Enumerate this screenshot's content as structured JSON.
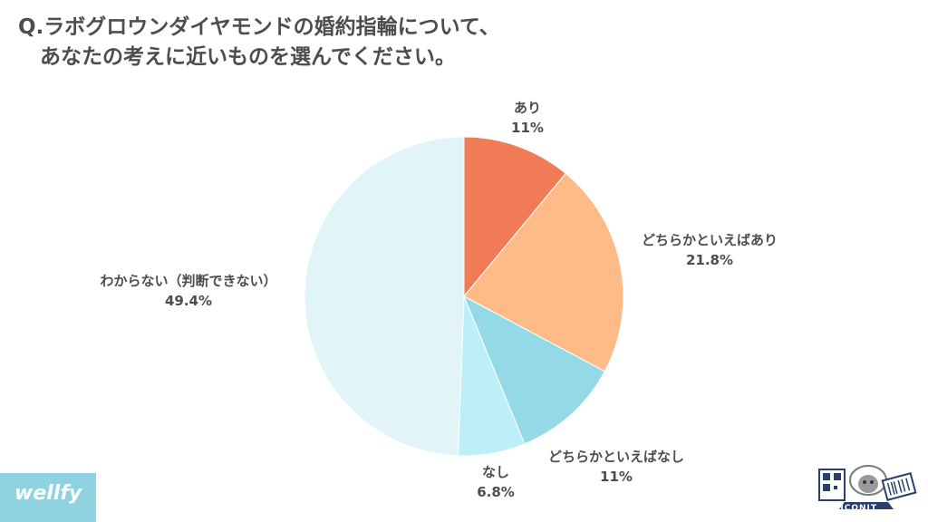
{
  "title": {
    "line1": "Q.ラボグロウンダイヤモンドの婚約指輪について、",
    "line2": "あなたの考えに近いものを選んでください。"
  },
  "chart_data": {
    "type": "pie",
    "start": "top, clockwise",
    "slices": [
      {
        "label": "あり",
        "value": 11,
        "value_label": "11%",
        "color": "#f07b56"
      },
      {
        "label": "どちらかといえばあり",
        "value": 21.8,
        "value_label": "21.8%",
        "color": "#ffbb87"
      },
      {
        "label": "どちらかといえばなし",
        "value": 11,
        "value_label": "11%",
        "color": "#93d9e6"
      },
      {
        "label": "なし",
        "value": 6.8,
        "value_label": "6.8%",
        "color": "#bdeff9"
      },
      {
        "label": "わからない（判断できない）",
        "value": 49.4,
        "value_label": "49.4%",
        "color": "#e1f4f8"
      }
    ]
  },
  "brand": {
    "name": "wellfy"
  },
  "logo": {
    "text": "ICONIT",
    "icon": "sheep-mascot-icon"
  }
}
